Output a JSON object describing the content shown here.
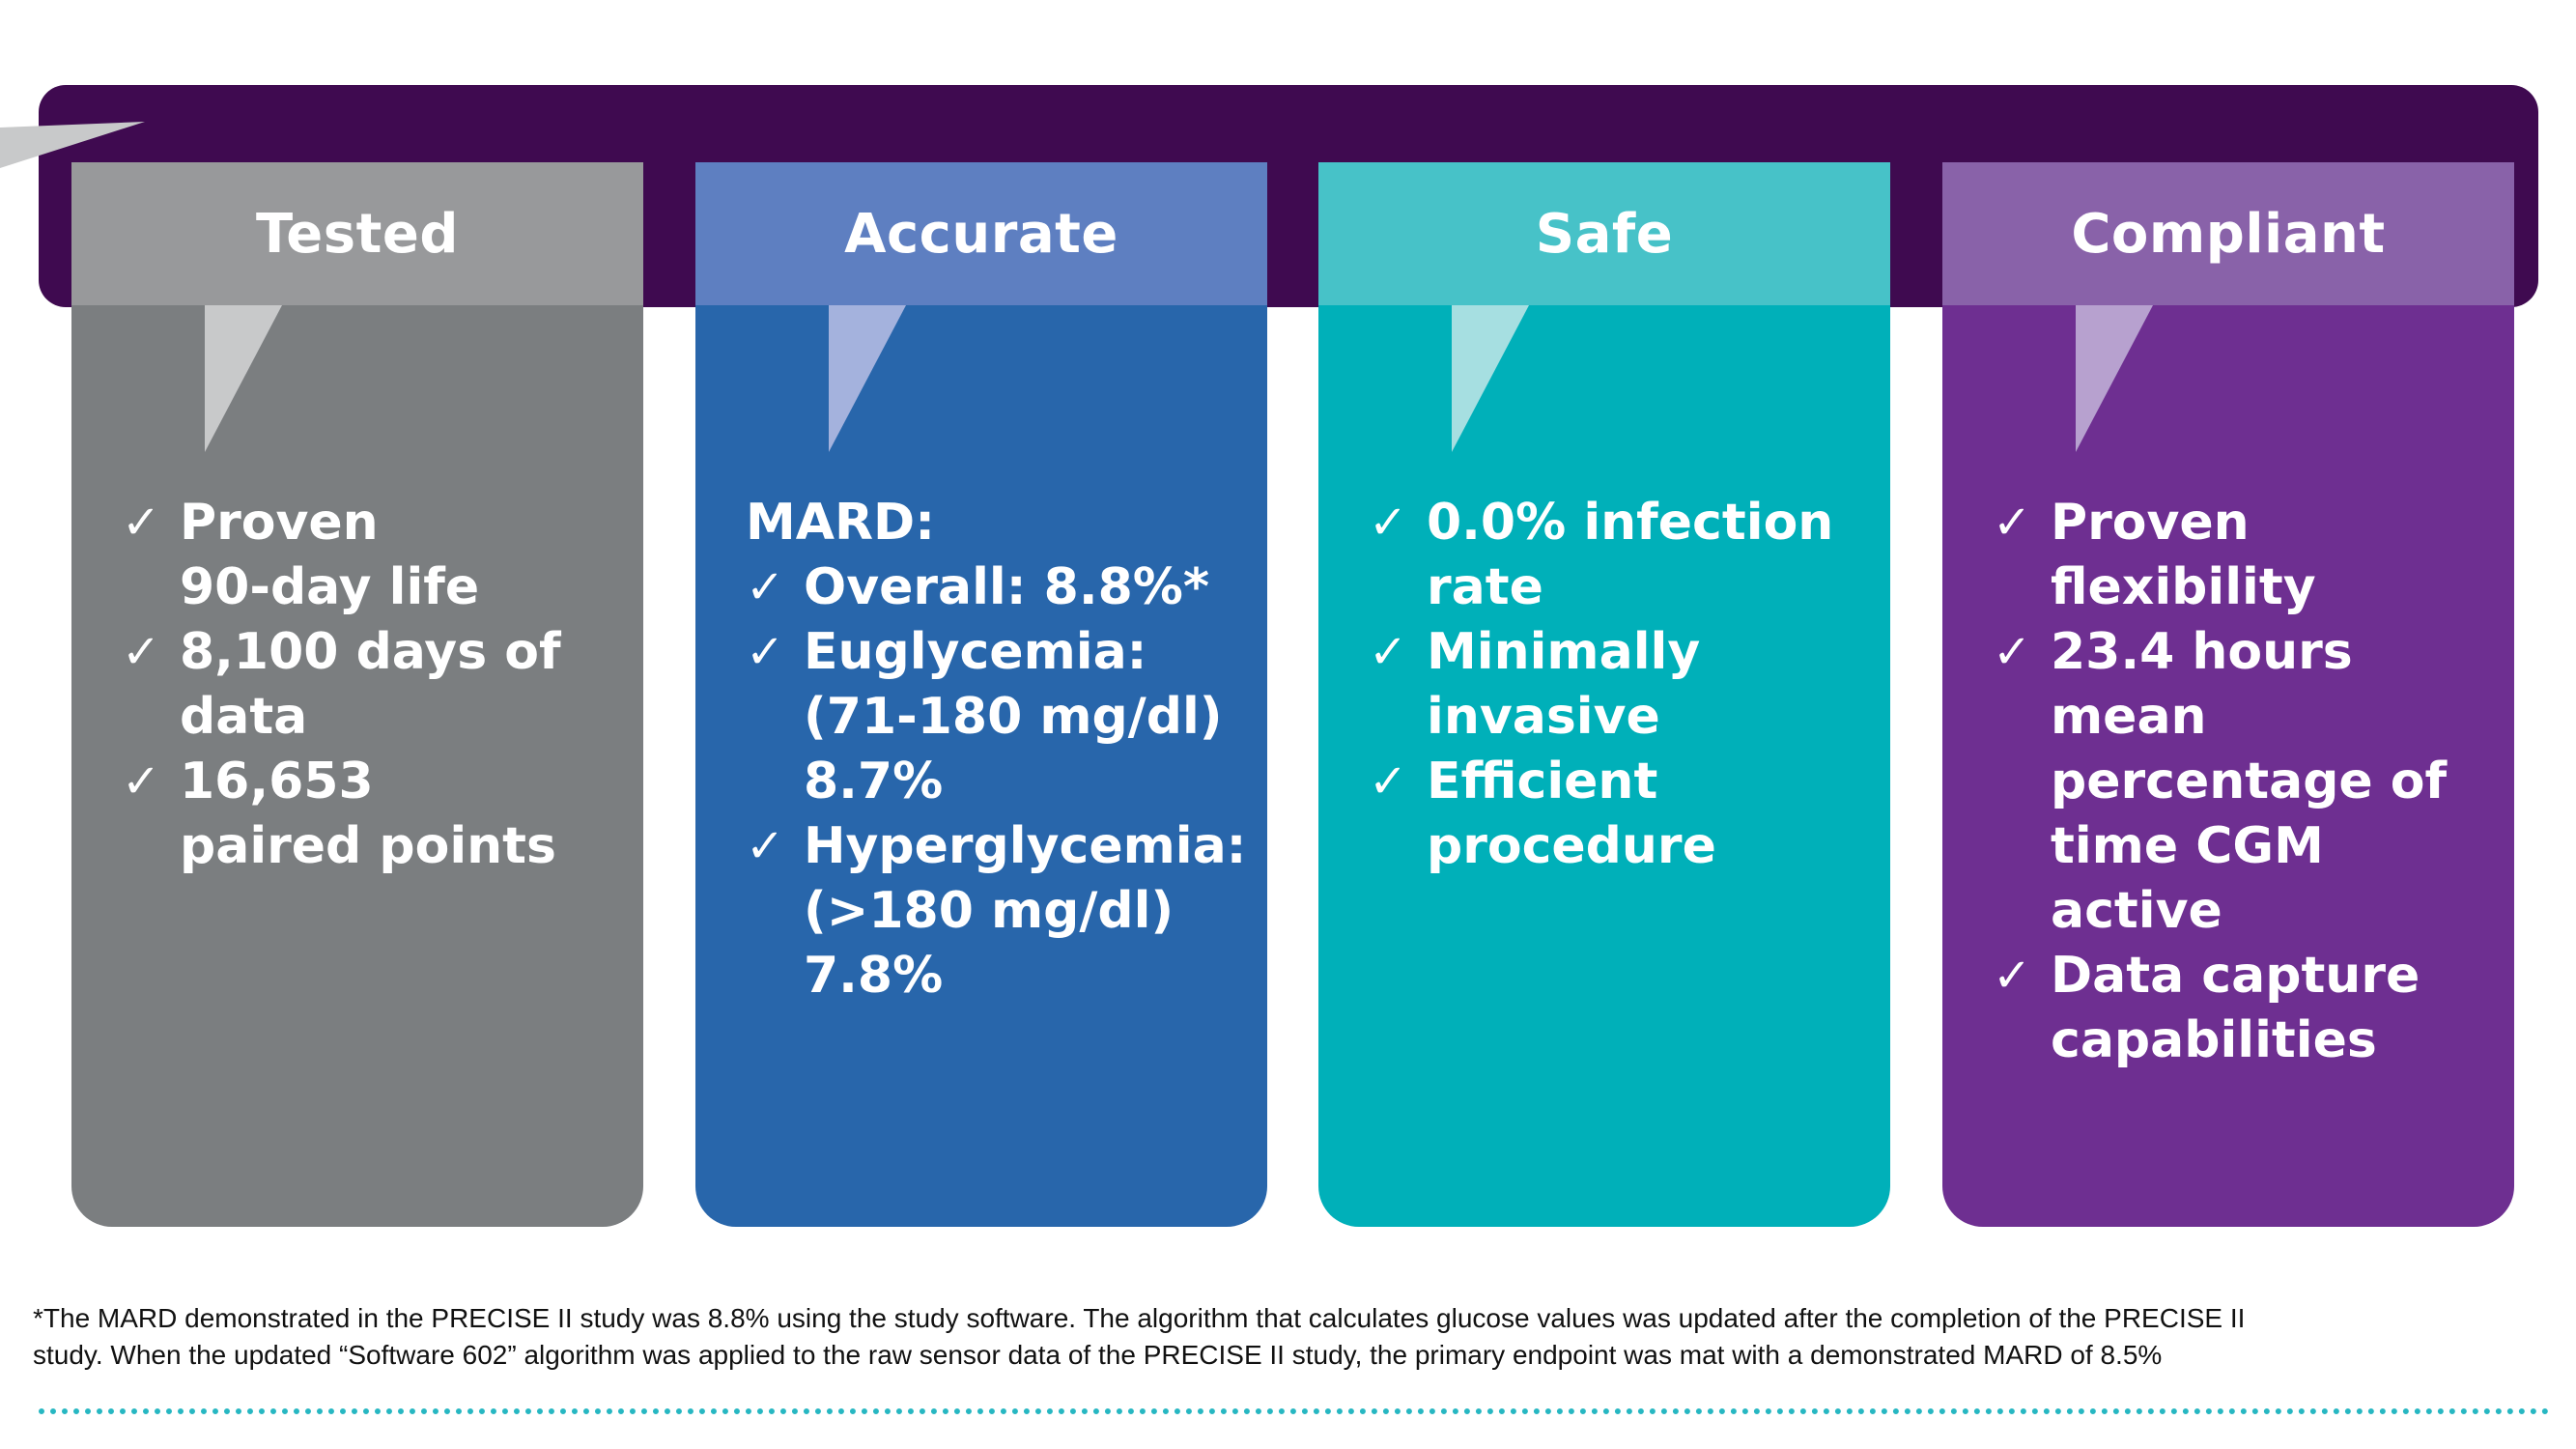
{
  "colors": {
    "band": "#3f0a50",
    "tested_head": "#98999b",
    "tested_body": "#7b7e80",
    "accurate_head": "#5e7fc1",
    "accurate_body": "#2866ab",
    "safe_head": "#47c2c8",
    "safe_body": "#00b0b9",
    "compliant_head": "#8962a9",
    "compliant_body": "#6e2f91",
    "footnote_rule": "#27b7c2"
  },
  "cards": {
    "tested": {
      "title": "Tested",
      "items": [
        {
          "line1": "Proven",
          "line2": "90-day life"
        },
        {
          "line1": "8,100 days of",
          "line2": "data"
        },
        {
          "line1": "16,653",
          "line2": "paired points"
        }
      ]
    },
    "accurate": {
      "title": "Accurate",
      "label": "MARD:",
      "items": [
        {
          "line1": "Overall: 8.8%*"
        },
        {
          "line1": "Euglycemia:",
          "line2": "(71-180 mg/dl)",
          "line3": "8.7%"
        },
        {
          "line1": "Hyperglycemia:",
          "line2": "(>180 mg/dl)",
          "line3": "7.8%"
        }
      ]
    },
    "safe": {
      "title": "Safe",
      "items": [
        {
          "line1": "0.0% infection",
          "line2": "rate"
        },
        {
          "line1": "Minimally",
          "line2": "invasive"
        },
        {
          "line1": "Efficient",
          "line2": "procedure"
        }
      ]
    },
    "compliant": {
      "title": "Compliant",
      "items": [
        {
          "line1": "Proven",
          "line2": "flexibility"
        },
        {
          "line1": "23.4 hours",
          "line2": "mean",
          "line3": "percentage of",
          "line4": "time CGM",
          "line5": "active"
        },
        {
          "line1": "Data capture",
          "line2": "capabilities"
        }
      ]
    }
  },
  "check_glyph": "✓",
  "footnote": {
    "line1": "*The MARD demonstrated in the PRECISE II study was 8.8% using the study software. The algorithm that calculates glucose values was updated after the completion of the PRECISE II",
    "line2": "study. When the updated “Software 602” algorithm was applied to the raw sensor data of the PRECISE II study, the primary endpoint was mat with a demonstrated MARD of 8.5%"
  }
}
